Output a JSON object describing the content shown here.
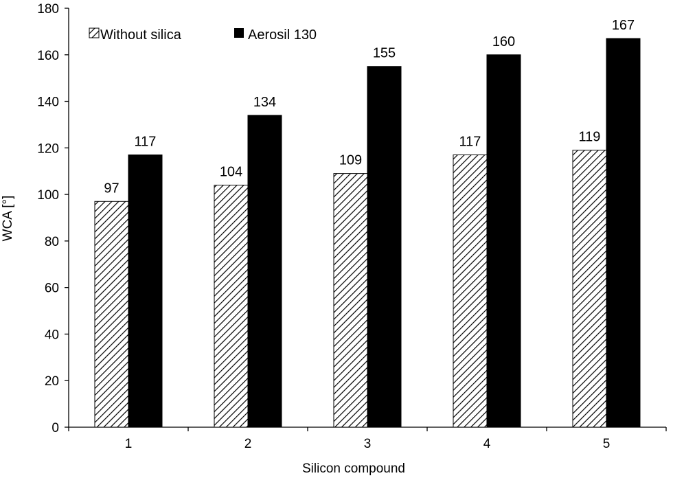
{
  "chart_data": {
    "type": "bar",
    "title": "",
    "xlabel": "Silicon compound",
    "ylabel": "WCA [°]",
    "categories": [
      "1",
      "2",
      "3",
      "4",
      "5"
    ],
    "ylim": [
      0,
      180
    ],
    "yticks": [
      0,
      20,
      40,
      60,
      80,
      100,
      120,
      140,
      160,
      180
    ],
    "grid": false,
    "legend_position": "top-left",
    "series": [
      {
        "name": "Without silica",
        "values": [
          97,
          104,
          109,
          117,
          119
        ],
        "fill": "hatched",
        "color": "#000000"
      },
      {
        "name": "Aerosil 130",
        "values": [
          117,
          134,
          155,
          160,
          167
        ],
        "fill": "solid",
        "color": "#000000"
      }
    ]
  }
}
